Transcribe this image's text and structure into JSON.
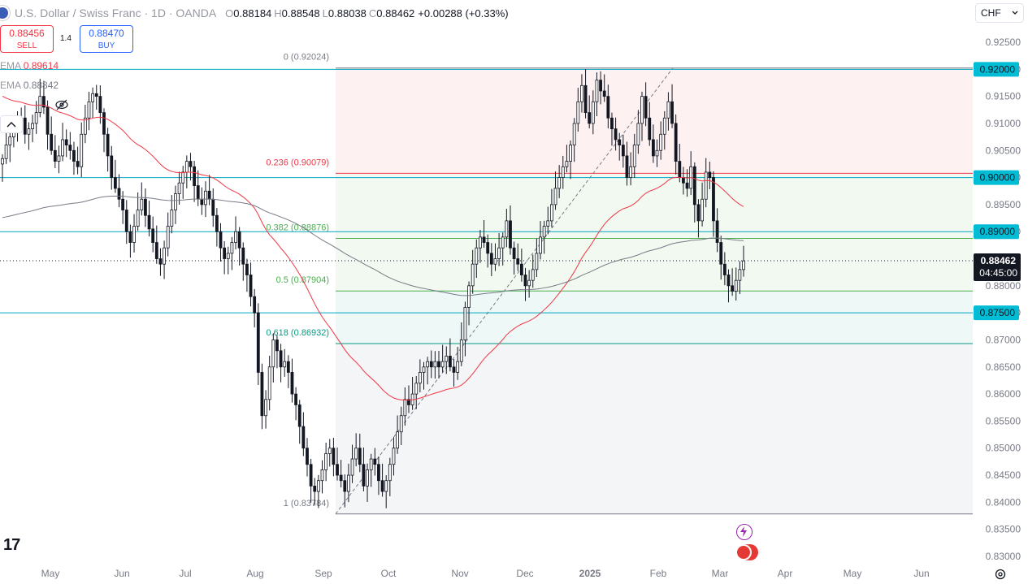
{
  "header": {
    "symbol": "U.S. Dollar / Swiss Franc · 1D · OANDA",
    "o_key": "O",
    "o_val": "0.88184",
    "h_key": "H",
    "h_val": "0.88548",
    "l_key": "L",
    "l_val": "0.88038",
    "c_key": "C",
    "c_val": "0.88462",
    "change": "+0.00288 (+0.33%)"
  },
  "trade": {
    "sell_price": "0.88456",
    "sell_label": "SELL",
    "spread": "1.4",
    "buy_price": "0.88470",
    "buy_label": "BUY"
  },
  "indicators": [
    {
      "label": "EMA",
      "value": "0.89614",
      "color": "#f23645"
    },
    {
      "label": "EMA",
      "value": "0.88842",
      "color": "#787b86"
    }
  ],
  "currency": "CHF",
  "logo_text": "17",
  "colors": {
    "up": "#131722",
    "down": "#131722",
    "ema50": "#f23645",
    "ema200": "#787b86",
    "hline": "#00a6bf",
    "fib_red": "#f23645",
    "fib_green": "#4caf50",
    "fib_teal": "#089981",
    "fib_gray": "#787b86"
  },
  "chart_data": {
    "type": "candlestick",
    "title": "U.S. Dollar / Swiss Franc · 1D · OANDA",
    "ylim": [
      0.8265,
      0.9315
    ],
    "y_ticks": [
      "0.92500",
      "0.92000",
      "0.91500",
      "0.91000",
      "0.90500",
      "0.90000",
      "0.89500",
      "0.89000",
      "0.88500",
      "0.88000",
      "0.87500",
      "0.87000",
      "0.86500",
      "0.86000",
      "0.85500",
      "0.85000",
      "0.84500",
      "0.84000",
      "0.83500",
      "0.83000"
    ],
    "x_labels": [
      "May",
      "Jun",
      "Jul",
      "Aug",
      "Sep",
      "Oct",
      "Nov",
      "Dec",
      "2025",
      "Feb",
      "Mar",
      "Apr",
      "May",
      "Jun"
    ],
    "current_price": {
      "price": "0.88462",
      "countdown": "04:45:00"
    },
    "horizontal_levels": [
      {
        "price": 0.92,
        "label": "0.92000"
      },
      {
        "price": 0.9,
        "label": "0.90000"
      },
      {
        "price": 0.89,
        "label": "0.89000"
      },
      {
        "price": 0.875,
        "label": "0.87500"
      }
    ],
    "fib_levels": [
      {
        "ratio": "0",
        "price": 0.92024,
        "label": "0 (0.92024)"
      },
      {
        "ratio": "0.236",
        "price": 0.90079,
        "label": "0.236 (0.90079)"
      },
      {
        "ratio": "0.382",
        "price": 0.88876,
        "label": "0.382 (0.88876)"
      },
      {
        "ratio": "0.5",
        "price": 0.87904,
        "label": "0.5 (0.87904)"
      },
      {
        "ratio": "0.618",
        "price": 0.86932,
        "label": "0.618 (0.86932)"
      },
      {
        "ratio": "1",
        "price": 0.83784,
        "label": "1 (0.83784)"
      }
    ],
    "closes": [
      0.9035,
      0.906,
      0.9075,
      0.909,
      0.9105,
      0.911,
      0.908,
      0.909,
      0.91,
      0.912,
      0.915,
      0.913,
      0.908,
      0.905,
      0.903,
      0.904,
      0.907,
      0.906,
      0.905,
      0.903,
      0.902,
      0.908,
      0.911,
      0.914,
      0.9155,
      0.915,
      0.912,
      0.908,
      0.904,
      0.9,
      0.898,
      0.896,
      0.894,
      0.89,
      0.888,
      0.891,
      0.894,
      0.896,
      0.893,
      0.8905,
      0.888,
      0.885,
      0.884,
      0.887,
      0.891,
      0.894,
      0.897,
      0.899,
      0.901,
      0.903,
      0.902,
      0.8985,
      0.896,
      0.895,
      0.8975,
      0.896,
      0.893,
      0.89,
      0.887,
      0.885,
      0.886,
      0.888,
      0.89,
      0.887,
      0.884,
      0.882,
      0.878,
      0.875,
      0.864,
      0.856,
      0.859,
      0.865,
      0.87,
      0.868,
      0.865,
      0.866,
      0.864,
      0.86,
      0.858,
      0.854,
      0.85,
      0.847,
      0.843,
      0.842,
      0.844,
      0.846,
      0.849,
      0.85,
      0.847,
      0.845,
      0.844,
      0.842,
      0.845,
      0.848,
      0.85,
      0.847,
      0.843,
      0.846,
      0.848,
      0.847,
      0.844,
      0.842,
      0.844,
      0.847,
      0.85,
      0.853,
      0.856,
      0.859,
      0.858,
      0.86,
      0.862,
      0.864,
      0.865,
      0.866,
      0.865,
      0.866,
      0.865,
      0.866,
      0.867,
      0.865,
      0.864,
      0.866,
      0.87,
      0.876,
      0.88,
      0.884,
      0.887,
      0.889,
      0.888,
      0.886,
      0.884,
      0.885,
      0.887,
      0.889,
      0.892,
      0.887,
      0.885,
      0.884,
      0.882,
      0.88,
      0.881,
      0.883,
      0.886,
      0.889,
      0.891,
      0.892,
      0.895,
      0.898,
      0.9,
      0.902,
      0.903,
      0.906,
      0.91,
      0.914,
      0.917,
      0.912,
      0.91,
      0.914,
      0.918,
      0.916,
      0.915,
      0.911,
      0.909,
      0.907,
      0.906,
      0.904,
      0.9,
      0.902,
      0.906,
      0.91,
      0.915,
      0.911,
      0.907,
      0.904,
      0.905,
      0.908,
      0.911,
      0.914,
      0.91,
      0.903,
      0.9,
      0.899,
      0.898,
      0.902,
      0.895,
      0.892,
      0.896,
      0.901,
      0.9,
      0.892,
      0.888,
      0.884,
      0.882,
      0.88,
      0.879,
      0.881,
      0.883,
      0.8846
    ],
    "ema50_label": "EMA 0.89614",
    "ema200_label": "EMA 0.88842"
  },
  "event_icons": [
    "lightning-icon",
    "us-flag-icon"
  ]
}
